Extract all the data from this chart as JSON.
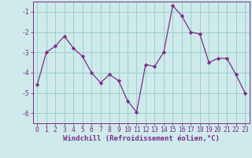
{
  "x": [
    0,
    1,
    2,
    3,
    4,
    5,
    6,
    7,
    8,
    9,
    10,
    11,
    12,
    13,
    14,
    15,
    16,
    17,
    18,
    19,
    20,
    21,
    22,
    23
  ],
  "y": [
    -4.6,
    -3.0,
    -2.7,
    -2.2,
    -2.8,
    -3.2,
    -4.0,
    -4.5,
    -4.1,
    -4.4,
    -5.4,
    -5.95,
    -3.6,
    -3.7,
    -3.0,
    -0.7,
    -1.2,
    -2.0,
    -2.1,
    -3.5,
    -3.3,
    -3.3,
    -4.1,
    -5.0
  ],
  "line_color": "#7b2d8b",
  "marker": "D",
  "marker_size": 2.2,
  "bg_color": "#ceeaea",
  "grid_color": "#9ecece",
  "xlabel": "Windchill (Refroidissement éolien,°C)",
  "xlabel_fontsize": 6.5,
  "xticks": [
    0,
    1,
    2,
    3,
    4,
    5,
    6,
    7,
    8,
    9,
    10,
    11,
    12,
    13,
    14,
    15,
    16,
    17,
    18,
    19,
    20,
    21,
    22,
    23
  ],
  "yticks": [
    -6,
    -5,
    -4,
    -3,
    -2,
    -1
  ],
  "ylim": [
    -6.5,
    -0.5
  ],
  "xlim": [
    -0.5,
    23.5
  ],
  "tick_fontsize": 5.8,
  "tick_color": "#7b2d8b",
  "xlabel_color": "#7b2d8b",
  "spine_color": "#7b2d8b",
  "linewidth": 0.9
}
